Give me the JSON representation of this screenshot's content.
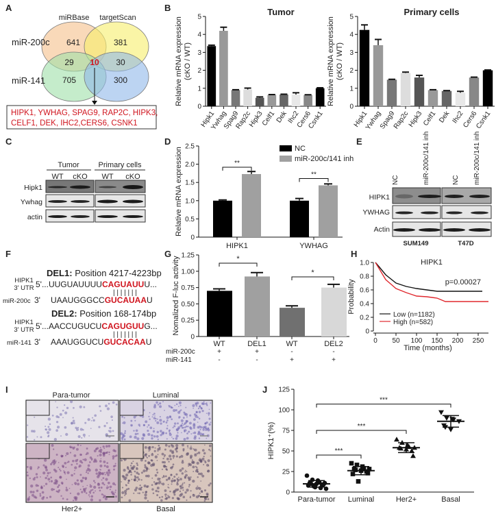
{
  "panel_labels": [
    "A",
    "B",
    "C",
    "D",
    "E",
    "F",
    "G",
    "H",
    "I",
    "J"
  ],
  "venn": {
    "sets": [
      "miRBase",
      "targetScan"
    ],
    "rows": [
      "miR-200c",
      "miR-141"
    ],
    "counts": {
      "mirbase_200c": "641",
      "targetscan_200c": "381",
      "left_mid": "29",
      "center": "10",
      "right_mid": "30",
      "mirbase_141": "705",
      "targetscan_141": "300"
    },
    "colors": [
      "#f5c08a",
      "#f7ee6a",
      "#9fe0a8",
      "#8fb8ea"
    ],
    "genes_line1": "HIPK1, YWHAG, SPAG9, RAP2C, HIPK3,",
    "genes_line2": "CELF1, DEK, IHC2,CERS6, CSNK1"
  },
  "blot_c": {
    "groups": [
      "Tumor",
      "Primary cells"
    ],
    "lanes": [
      "WT",
      "cKO",
      "WT",
      "cKO"
    ],
    "rows": [
      "Hipk1",
      "Ywhag",
      "actin"
    ]
  },
  "blot_e": {
    "lanes": [
      "NC",
      "miR-200c/141 inh",
      "NC",
      "miR-200c/141 inh"
    ],
    "rows": [
      "HIPK1",
      "YWHAG",
      "Actin"
    ],
    "cell_lines": [
      "SUM149",
      "T47D"
    ]
  },
  "seq_f": {
    "del1_title": "DEL1:",
    "del1_pos": "Position 4217-4223bp",
    "del2_title": "DEL2:",
    "del2_pos": "Position 168-174bp",
    "utr_label_1": "HIPK1",
    "utr_label_2": "3' UTR",
    "mir1": "miR-200c",
    "mir2": "miR-141",
    "five": "5'...",
    "three": "3'",
    "s1_utr_a": "UUGUAUUUU",
    "s1_utr_b": "CAGUAUU",
    "s1_utr_c": "U...",
    "s1_mir_a": "UAAUGGGCC",
    "s1_mir_b": "GUCAUAA",
    "s1_mir_c": "U",
    "s2_utr_a": "AACCUGUCU",
    "s2_utr_b": "CAGUGUU",
    "s2_utr_c": "G...",
    "s2_mir_a": "AAAUGGUCU",
    "s2_mir_b": "GUCACAA",
    "s2_mir_c": "U",
    "pairs": "| | | | | | |"
  },
  "histology": {
    "labels": [
      "Para-tumor",
      "Luminal",
      "Her2+",
      "Basal"
    ]
  },
  "chart_data": [
    {
      "id": "B-tumor",
      "type": "bar",
      "title": "Tumor",
      "ylabel": "Relative mRNA expression (cKO / WT)",
      "ylim": [
        0,
        5
      ],
      "yticks": [
        0,
        1,
        2,
        3,
        4,
        5
      ],
      "categories": [
        "Hipk1",
        "Ywhag",
        "Spag9",
        "Rap2c",
        "Hipk3",
        "Celf1",
        "Dek",
        "Ihc2",
        "Cers6",
        "Csnk1"
      ],
      "values": [
        3.35,
        4.2,
        0.9,
        0.93,
        0.47,
        0.63,
        0.65,
        0.65,
        0.62,
        1.0
      ],
      "errors": [
        0.05,
        0.2,
        0.02,
        0.08,
        0.05,
        0.02,
        0.02,
        0.1,
        0.02,
        0.03
      ],
      "colors": [
        "#000000",
        "#999999",
        "#777777",
        "#dddddd",
        "#555555",
        "#999999",
        "#666666",
        "#e8e8e8",
        "#888888",
        "#000000"
      ]
    },
    {
      "id": "B-primary",
      "type": "bar",
      "title": "Primary cells",
      "ylabel": "Relative mRNA expression (cKO / WT)",
      "ylim": [
        0,
        5
      ],
      "yticks": [
        0,
        1,
        2,
        3,
        4,
        5
      ],
      "categories": [
        "Hipk1",
        "Ywhag",
        "Spag9",
        "Rap2c",
        "Hipk3",
        "Celf1",
        "Dek",
        "Ihc2",
        "Cers6",
        "Csnk1"
      ],
      "values": [
        4.25,
        3.4,
        1.48,
        1.85,
        1.6,
        0.9,
        0.85,
        0.75,
        1.6,
        2.0
      ],
      "errors": [
        0.28,
        0.32,
        0.02,
        0.05,
        0.12,
        0.02,
        0.02,
        0.08,
        0.02,
        0.02
      ],
      "colors": [
        "#000000",
        "#999999",
        "#777777",
        "#dddddd",
        "#555555",
        "#999999",
        "#666666",
        "#e8e8e8",
        "#888888",
        "#000000"
      ]
    },
    {
      "id": "D",
      "type": "bar",
      "ylabel": "Relative mRNA expression",
      "ylim": [
        0,
        2.5
      ],
      "yticks": [
        "0",
        "0.5",
        "1.0",
        "1.5",
        "2.0",
        "2.5"
      ],
      "categories": [
        "HIPK1",
        "YWHAG"
      ],
      "series": [
        {
          "name": "NC",
          "values": [
            1.0,
            1.0
          ],
          "errors": [
            0.02,
            0.06
          ],
          "color": "#000000"
        },
        {
          "name": "miR-200c/141 inh",
          "values": [
            1.73,
            1.42
          ],
          "errors": [
            0.07,
            0.04
          ],
          "color": "#a0a0a0"
        }
      ],
      "significance": [
        "**",
        "**"
      ]
    },
    {
      "id": "G",
      "type": "bar",
      "ylabel": "Nomalized F-luc activity",
      "ylim": [
        0,
        1.25
      ],
      "yticks": [
        "0",
        "0.25",
        "0.50",
        "0.75",
        "1.00",
        "1.25"
      ],
      "categories": [
        "WT",
        "DEL1",
        "WT",
        "DEL2"
      ],
      "values": [
        0.7,
        0.92,
        0.44,
        0.75
      ],
      "errors": [
        0.03,
        0.06,
        0.03,
        0.05
      ],
      "colors": [
        "#000000",
        "#a0a0a0",
        "#707070",
        "#d8d8d8"
      ],
      "conditions": [
        {
          "name": "miR-200c",
          "marks": [
            "+",
            "+",
            "-",
            "-"
          ]
        },
        {
          "name": "miR-141",
          "marks": [
            "-",
            "-",
            "+",
            "+"
          ]
        }
      ],
      "significance": [
        "*",
        "*"
      ]
    },
    {
      "id": "H",
      "type": "line",
      "title": "HIPK1",
      "xlabel": "Time (months)",
      "ylabel": "Probability",
      "xlim": [
        0,
        275
      ],
      "ylim": [
        0,
        1.0
      ],
      "xticks": [
        0,
        50,
        100,
        150,
        200,
        250
      ],
      "yticks": [
        "0",
        "0.2",
        "0.4",
        "0.6",
        "0.8",
        "1.0"
      ],
      "annotation": "p=0.00027",
      "series": [
        {
          "name": "Low (n=1182)",
          "color": "#111111",
          "x": [
            0,
            10,
            25,
            50,
            75,
            100,
            125,
            150,
            260
          ],
          "y": [
            1.0,
            0.93,
            0.82,
            0.7,
            0.65,
            0.62,
            0.6,
            0.58,
            0.58
          ]
        },
        {
          "name": "High (n=582)",
          "color": "#e0282e",
          "x": [
            0,
            10,
            25,
            50,
            75,
            100,
            125,
            150,
            170,
            275
          ],
          "y": [
            1.0,
            0.9,
            0.75,
            0.62,
            0.56,
            0.51,
            0.5,
            0.48,
            0.43,
            0.43
          ]
        }
      ]
    },
    {
      "id": "J",
      "type": "scatter",
      "ylabel": "HIPK1⁺(%)",
      "ylim": [
        0,
        125
      ],
      "yticks": [
        0,
        25,
        50,
        75,
        100,
        125
      ],
      "categories": [
        "Para-tumor",
        "Luminal",
        "Her2+",
        "Basal"
      ],
      "values": [
        [
          20,
          15,
          14,
          12,
          11,
          11,
          10,
          10,
          9,
          9,
          8,
          7,
          6,
          5,
          4
        ],
        [
          35,
          33,
          31,
          29,
          28,
          28,
          27,
          26,
          25,
          23,
          22,
          13
        ],
        [
          64,
          60,
          57,
          55,
          54,
          54,
          53,
          52,
          50,
          44
        ],
        [
          97,
          90,
          89,
          88,
          86,
          81,
          79,
          76
        ]
      ],
      "means": [
        10,
        26,
        54,
        86
      ],
      "sd": [
        4,
        5,
        6,
        7
      ],
      "markers": [
        "circle",
        "square",
        "triangle-up",
        "triangle-down"
      ],
      "comparisons": [
        [
          "Para-tumor",
          "Luminal",
          "***"
        ],
        [
          "Para-tumor",
          "Her2+",
          "***"
        ],
        [
          "Para-tumor",
          "Basal",
          "***"
        ]
      ]
    }
  ]
}
